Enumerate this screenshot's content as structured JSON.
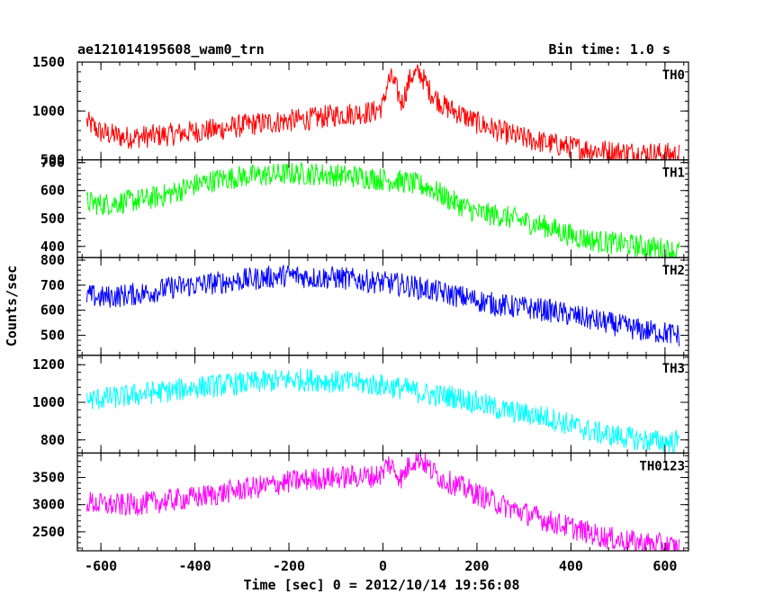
{
  "header": {
    "title": "ae121014195608_wam0_trn",
    "bin_time": "Bin time: 1.0 s"
  },
  "chart_data": [
    {
      "type": "line",
      "panel": "TH0",
      "color": "#ff0000",
      "xlim": [
        -650,
        650
      ],
      "ylim": [
        500,
        1500
      ],
      "yticks": [
        500,
        1000,
        1500
      ],
      "x": [
        -630,
        -600,
        -550,
        -500,
        -450,
        -400,
        -350,
        -300,
        -250,
        -200,
        -150,
        -100,
        -50,
        -20,
        0,
        10,
        20,
        40,
        60,
        80,
        100,
        130,
        160,
        200,
        250,
        300,
        350,
        400,
        450,
        500,
        550,
        600,
        630
      ],
      "y": [
        890,
        780,
        730,
        740,
        760,
        790,
        810,
        850,
        880,
        900,
        920,
        960,
        980,
        990,
        1050,
        1300,
        1330,
        1080,
        1360,
        1380,
        1200,
        1050,
        980,
        880,
        790,
        720,
        670,
        630,
        600,
        580,
        570,
        560,
        550
      ]
    },
    {
      "type": "line",
      "panel": "TH1",
      "color": "#00ff00",
      "xlim": [
        -650,
        650
      ],
      "ylim": [
        360,
        710
      ],
      "yticks": [
        400,
        500,
        600,
        700
      ],
      "x": [
        -630,
        -600,
        -550,
        -500,
        -450,
        -400,
        -350,
        -300,
        -250,
        -200,
        -150,
        -100,
        -50,
        0,
        50,
        100,
        150,
        200,
        250,
        300,
        350,
        400,
        450,
        500,
        550,
        600,
        630
      ],
      "y": [
        560,
        550,
        560,
        570,
        590,
        620,
        640,
        650,
        655,
        660,
        660,
        655,
        650,
        640,
        630,
        610,
        560,
        520,
        510,
        490,
        470,
        440,
        420,
        410,
        400,
        390,
        380
      ]
    },
    {
      "type": "line",
      "panel": "TH2",
      "color": "#0000ff",
      "xlim": [
        -650,
        650
      ],
      "ylim": [
        420,
        810
      ],
      "yticks": [
        500,
        600,
        700,
        800
      ],
      "x": [
        -630,
        -600,
        -550,
        -500,
        -450,
        -400,
        -350,
        -300,
        -250,
        -200,
        -150,
        -100,
        -50,
        0,
        50,
        100,
        150,
        200,
        250,
        300,
        350,
        400,
        450,
        500,
        550,
        600,
        630
      ],
      "y": [
        660,
        650,
        660,
        670,
        690,
        700,
        710,
        720,
        730,
        740,
        730,
        730,
        720,
        710,
        700,
        680,
        660,
        640,
        620,
        610,
        600,
        580,
        560,
        540,
        520,
        510,
        500
      ]
    },
    {
      "type": "line",
      "panel": "TH3",
      "color": "#00ffff",
      "xlim": [
        -650,
        650
      ],
      "ylim": [
        730,
        1250
      ],
      "yticks": [
        800,
        1000,
        1200
      ],
      "x": [
        -630,
        -600,
        -550,
        -500,
        -450,
        -400,
        -350,
        -300,
        -250,
        -200,
        -150,
        -100,
        -50,
        0,
        50,
        100,
        150,
        200,
        250,
        300,
        350,
        400,
        450,
        500,
        550,
        600,
        630
      ],
      "y": [
        1010,
        1020,
        1030,
        1050,
        1060,
        1080,
        1090,
        1100,
        1110,
        1120,
        1120,
        1110,
        1100,
        1090,
        1070,
        1040,
        1030,
        1000,
        960,
        940,
        920,
        880,
        840,
        820,
        800,
        790,
        790
      ]
    },
    {
      "type": "line",
      "panel": "TH0123",
      "color": "#ff00ff",
      "xlim": [
        -650,
        650
      ],
      "ylim": [
        2150,
        3950
      ],
      "yticks": [
        2500,
        3000,
        3500
      ],
      "x": [
        -630,
        -600,
        -550,
        -500,
        -450,
        -400,
        -350,
        -300,
        -250,
        -200,
        -150,
        -100,
        -50,
        -20,
        0,
        10,
        20,
        40,
        60,
        80,
        100,
        130,
        160,
        200,
        250,
        300,
        350,
        400,
        450,
        500,
        550,
        600,
        630
      ],
      "y": [
        3050,
        3000,
        2990,
        3030,
        3080,
        3130,
        3200,
        3280,
        3340,
        3420,
        3470,
        3500,
        3520,
        3520,
        3580,
        3780,
        3680,
        3480,
        3800,
        3850,
        3650,
        3450,
        3350,
        3200,
        3000,
        2850,
        2700,
        2580,
        2450,
        2350,
        2300,
        2250,
        2200
      ]
    }
  ],
  "x_axis": {
    "label": "Time [sec] 0 = 2012/10/14 19:56:08",
    "ticks": [
      -600,
      -400,
      -200,
      0,
      200,
      400,
      600
    ]
  },
  "y_axis": {
    "label": "Counts/sec"
  }
}
